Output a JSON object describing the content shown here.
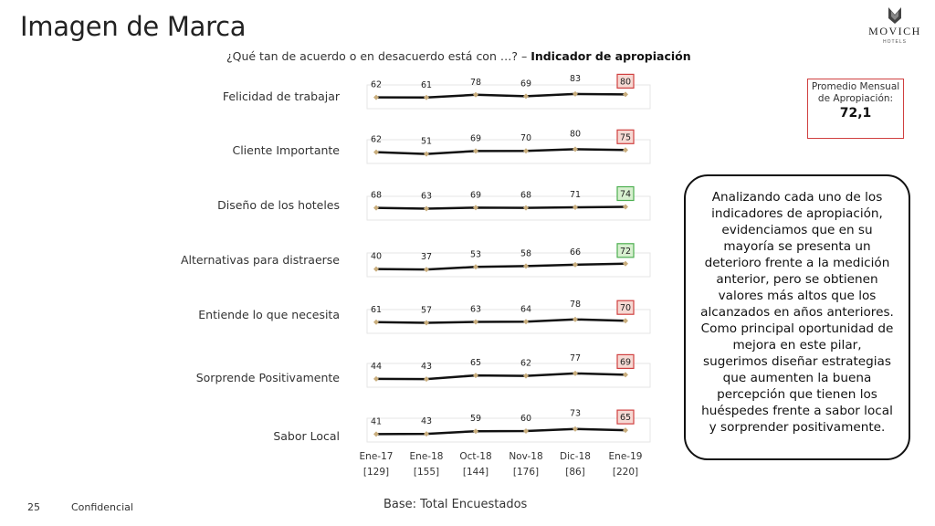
{
  "header": {
    "title": "Imagen de Marca",
    "brand": "MOVICH",
    "brand_sub": "HOTELS",
    "question_prefix": "¿Qué tan de acuerdo o en desacuerdo está con …? – ",
    "question_bold": "Indicador de apropiación"
  },
  "chart_data": {
    "type": "line",
    "periods": [
      "Ene-17",
      "Ene-18",
      "Oct-18",
      "Nov-18",
      "Dic-18",
      "Ene-19"
    ],
    "bases": [
      "[129]",
      "[155]",
      "[144]",
      "[176]",
      "[86]",
      "[220]"
    ],
    "series": [
      {
        "name": "Felicidad de trabajar",
        "values": [
          62,
          61,
          78,
          69,
          83,
          80
        ],
        "last_box": "red"
      },
      {
        "name": "Cliente Importante",
        "values": [
          62,
          51,
          69,
          70,
          80,
          75
        ],
        "last_box": "red"
      },
      {
        "name": "Diseño de los hoteles",
        "values": [
          68,
          63,
          69,
          68,
          71,
          74
        ],
        "last_box": "green"
      },
      {
        "name": "Alternativas para distraerse",
        "values": [
          40,
          37,
          53,
          58,
          66,
          72
        ],
        "last_box": "green"
      },
      {
        "name": "Entiende lo que necesita",
        "values": [
          61,
          57,
          63,
          64,
          78,
          70
        ],
        "last_box": "red"
      },
      {
        "name": "Sorprende Positivamente",
        "values": [
          44,
          43,
          65,
          62,
          77,
          69
        ],
        "last_box": "red"
      },
      {
        "name": "Sabor Local",
        "values": [
          41,
          43,
          59,
          60,
          73,
          65
        ],
        "last_box": "red"
      }
    ],
    "colors": {
      "line": "#111111",
      "marker": "#c9ad7c",
      "box_red": "#d04040",
      "box_red_fill": "#f6d9d3",
      "box_green": "#4caf50",
      "box_green_fill": "#d7efcf"
    }
  },
  "average": {
    "label": "Promedio Mensual de Apropiación:",
    "value": "72,1"
  },
  "note": "Analizando cada uno de los indicadores de apropiación, evidenciamos que en su mayoría se presenta un deterioro frente a la medición anterior, pero se obtienen valores más altos que los alcanzados en años anteriores. Como principal oportunidad de mejora en este pilar, sugerimos diseñar estrategias que aumenten la buena percepción que tienen los huéspedes frente a sabor local y sorprender positivamente.",
  "footer": {
    "base": "Base: Total Encuestados",
    "page": "25",
    "confidential": "Confidencial"
  }
}
